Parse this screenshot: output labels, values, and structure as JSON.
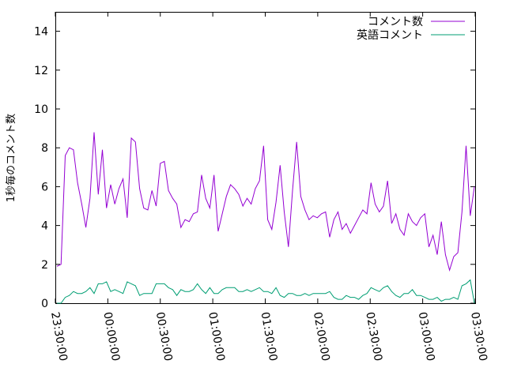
{
  "chart_data": {
    "type": "line",
    "ylabel": "1秒毎のコメント数",
    "xlabel": "",
    "ylim": [
      0,
      15
    ],
    "yticks": [
      "0",
      "2",
      "4",
      "6",
      "8",
      "10",
      "12",
      "14"
    ],
    "xticks": [
      "23:30:00",
      "00:00:00",
      "00:30:00",
      "01:00:00",
      "01:30:00",
      "02:00:00",
      "02:30:00",
      "03:00:00",
      "03:30:00"
    ],
    "legend_position": "top-right",
    "grid": false,
    "series": [
      {
        "name": "コメント数",
        "color": "#9400d3",
        "values": [
          1.9,
          2.0,
          7.6,
          8.0,
          7.9,
          6.2,
          5.1,
          3.9,
          5.4,
          8.8,
          5.6,
          7.9,
          4.9,
          6.1,
          5.1,
          5.9,
          6.4,
          4.4,
          8.5,
          8.3,
          5.9,
          4.9,
          4.8,
          5.8,
          5.0,
          7.2,
          7.3,
          5.8,
          5.4,
          5.1,
          3.9,
          4.3,
          4.2,
          4.6,
          4.7,
          6.6,
          5.4,
          4.9,
          6.6,
          3.7,
          4.6,
          5.5,
          6.1,
          5.9,
          5.6,
          5.0,
          5.4,
          5.1,
          5.9,
          6.3,
          8.1,
          4.3,
          3.8,
          5.2,
          7.1,
          4.7,
          2.9,
          5.8,
          8.3,
          5.5,
          4.8,
          4.3,
          4.5,
          4.4,
          4.6,
          4.7,
          3.4,
          4.3,
          4.7,
          3.8,
          4.1,
          3.6,
          4.0,
          4.4,
          4.8,
          4.6,
          6.2,
          5.1,
          4.7,
          5.0,
          6.3,
          4.1,
          4.6,
          3.8,
          3.5,
          4.6,
          4.2,
          4.0,
          4.4,
          4.6,
          2.9,
          3.5,
          2.5,
          4.2,
          2.5,
          1.7,
          2.4,
          2.6,
          4.7,
          8.1,
          4.5,
          6.0
        ]
      },
      {
        "name": "英語コメント",
        "color": "#009e73",
        "values": [
          0.0,
          0.0,
          0.3,
          0.4,
          0.6,
          0.5,
          0.5,
          0.6,
          0.8,
          0.5,
          1.0,
          1.0,
          1.1,
          0.6,
          0.7,
          0.6,
          0.5,
          1.1,
          1.0,
          0.9,
          0.4,
          0.5,
          0.5,
          0.5,
          1.0,
          1.0,
          1.0,
          0.8,
          0.7,
          0.4,
          0.7,
          0.6,
          0.6,
          0.7,
          1.0,
          0.7,
          0.5,
          0.8,
          0.5,
          0.5,
          0.7,
          0.8,
          0.8,
          0.8,
          0.6,
          0.6,
          0.7,
          0.6,
          0.7,
          0.8,
          0.6,
          0.6,
          0.5,
          0.8,
          0.4,
          0.3,
          0.5,
          0.5,
          0.4,
          0.4,
          0.5,
          0.4,
          0.5,
          0.5,
          0.5,
          0.5,
          0.6,
          0.3,
          0.2,
          0.2,
          0.4,
          0.3,
          0.3,
          0.2,
          0.4,
          0.5,
          0.8,
          0.7,
          0.6,
          0.8,
          0.9,
          0.6,
          0.4,
          0.3,
          0.5,
          0.5,
          0.7,
          0.4,
          0.4,
          0.3,
          0.2,
          0.2,
          0.3,
          0.1,
          0.2,
          0.2,
          0.3,
          0.2,
          0.9,
          1.0,
          1.2,
          0.0
        ]
      }
    ]
  }
}
